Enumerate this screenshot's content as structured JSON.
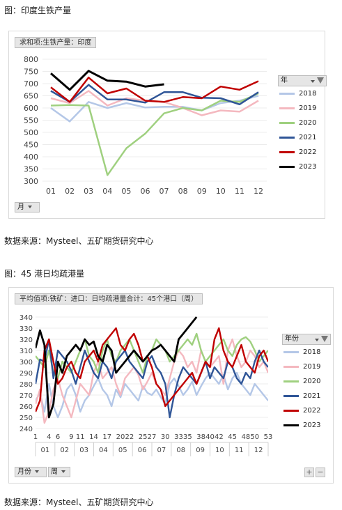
{
  "chart1": {
    "caption": "图：印度生铁产量",
    "pivot_label": "求和项:生铁产量：印度",
    "legend_title": "年",
    "field_button": "月",
    "source": "数据来源：Mysteel、五矿期货研究中心"
  },
  "chart2": {
    "caption": "图：45 港日均疏港量",
    "pivot_label": "平均值项:铁矿：进口：日均疏港量合计：45个港口（周）",
    "legend_title": "年份",
    "field_button_1": "月份",
    "field_button_2": "周",
    "plus": "+",
    "minus": "−",
    "source": "数据来源：Mysteel、五矿期货研究中心"
  },
  "chart_data": [
    {
      "type": "line",
      "x": [
        "01",
        "02",
        "03",
        "04",
        "05",
        "06",
        "07",
        "08",
        "09",
        "10",
        "11",
        "12"
      ],
      "ylim": [
        300,
        800
      ],
      "yticks": [
        300,
        350,
        400,
        450,
        500,
        550,
        600,
        650,
        700,
        750,
        800
      ],
      "legend_placement": "right",
      "series": [
        {
          "name": "2018",
          "color": "#b4c7e7",
          "values": [
            600,
            545,
            625,
            600,
            620,
            602,
            605,
            605,
            590,
            620,
            630,
            650
          ]
        },
        {
          "name": "2019",
          "color": "#f4b8bf",
          "values": [
            640,
            620,
            670,
            610,
            640,
            630,
            625,
            600,
            570,
            590,
            585,
            630
          ]
        },
        {
          "name": "2020",
          "color": "#9fd07f",
          "values": [
            610,
            612,
            610,
            325,
            435,
            495,
            578,
            600,
            590,
            630,
            625,
            660
          ]
        },
        {
          "name": "2021",
          "color": "#2f5597",
          "values": [
            670,
            625,
            695,
            635,
            635,
            622,
            665,
            665,
            642,
            640,
            615,
            665
          ]
        },
        {
          "name": "2022",
          "color": "#c00000",
          "values": [
            685,
            625,
            725,
            660,
            680,
            630,
            625,
            645,
            640,
            688,
            675,
            710
          ]
        },
        {
          "name": "2023",
          "color": "#000000",
          "values": [
            742,
            675,
            752,
            712,
            708,
            688,
            697,
            null,
            null,
            null,
            null,
            null
          ]
        }
      ]
    },
    {
      "type": "line",
      "xticks": [
        1,
        4,
        6,
        9,
        11,
        14,
        17,
        20,
        22,
        25,
        27,
        30,
        33,
        35,
        38,
        40,
        42,
        45,
        48,
        50,
        53
      ],
      "months": [
        "01",
        "02",
        "03",
        "04",
        "05",
        "06",
        "07",
        "08",
        "09",
        "10",
        "11",
        "12"
      ],
      "ylim": [
        240,
        340
      ],
      "yticks": [
        240,
        250,
        260,
        270,
        280,
        290,
        300,
        310,
        320,
        330,
        340
      ],
      "legend_placement": "right",
      "series": [
        {
          "name": "2018",
          "color": "#b4c7e7",
          "values": [
            265,
            272,
            255,
            280,
            260,
            250,
            260,
            275,
            280,
            270,
            255,
            265,
            270,
            278,
            285,
            275,
            270,
            260,
            275,
            268,
            280,
            275,
            270,
            265,
            278,
            272,
            270,
            275,
            268,
            262,
            280,
            285,
            278,
            270,
            275,
            282,
            270,
            278,
            285,
            290,
            285,
            280,
            288,
            275,
            285,
            290,
            280,
            275,
            270,
            280,
            275,
            270,
            265
          ]
        },
        {
          "name": "2019",
          "color": "#f4b8bf",
          "values": [
            262,
            275,
            245,
            255,
            275,
            285,
            270,
            260,
            250,
            265,
            280,
            275,
            270,
            290,
            300,
            285,
            290,
            295,
            280,
            270,
            285,
            290,
            295,
            288,
            275,
            282,
            290,
            280,
            275,
            270,
            285,
            300,
            310,
            305,
            295,
            300,
            290,
            310,
            300,
            295,
            300,
            305,
            280,
            310,
            320,
            305,
            295,
            300,
            310,
            305,
            295,
            300,
            290
          ]
        },
        {
          "name": "2020",
          "color": "#9fd07f",
          "values": [
            305,
            300,
            295,
            310,
            290,
            285,
            300,
            295,
            290,
            300,
            310,
            320,
            305,
            300,
            290,
            310,
            320,
            305,
            300,
            310,
            315,
            320,
            310,
            300,
            290,
            305,
            310,
            320,
            315,
            310,
            300,
            305,
            310,
            315,
            320,
            315,
            325,
            310,
            300,
            305,
            310,
            315,
            320,
            310,
            305,
            315,
            320,
            322,
            318,
            310,
            300,
            305,
            310
          ]
        },
        {
          "name": "2021",
          "color": "#2f5597",
          "values": [
            280,
            302,
            300,
            320,
            285,
            310,
            305,
            300,
            292,
            280,
            295,
            310,
            300,
            290,
            285,
            300,
            295,
            285,
            300,
            305,
            310,
            300,
            295,
            290,
            285,
            300,
            305,
            295,
            290,
            280,
            250,
            270,
            285,
            295,
            290,
            285,
            280,
            290,
            300,
            285,
            295,
            290,
            285,
            300,
            295,
            285,
            280,
            290,
            285,
            300,
            310,
            300,
            295
          ]
        },
        {
          "name": "2022",
          "color": "#c00000",
          "values": [
            255,
            265,
            310,
            320,
            300,
            280,
            285,
            295,
            300,
            290,
            285,
            300,
            305,
            310,
            300,
            315,
            320,
            325,
            330,
            315,
            310,
            320,
            325,
            315,
            300,
            305,
            295,
            280,
            275,
            260,
            265,
            270,
            275,
            280,
            285,
            290,
            280,
            290,
            300,
            295,
            320,
            330,
            310,
            300,
            295,
            305,
            315,
            300,
            295,
            290,
            305,
            310,
            300
          ]
        },
        {
          "name": "2023",
          "color": "#000000",
          "values": [
            312,
            328,
            315,
            250,
            262,
            300,
            290,
            305,
            310,
            315,
            310,
            320,
            315,
            318,
            305,
            300,
            315,
            310,
            290,
            295,
            300,
            305,
            310,
            305,
            300,
            305,
            310,
            312,
            315,
            310,
            305,
            300,
            320,
            325,
            330,
            335,
            340,
            null,
            null,
            null,
            null,
            null,
            null,
            null,
            null,
            null,
            null,
            null,
            null,
            null,
            null,
            null,
            null
          ]
        }
      ]
    }
  ]
}
